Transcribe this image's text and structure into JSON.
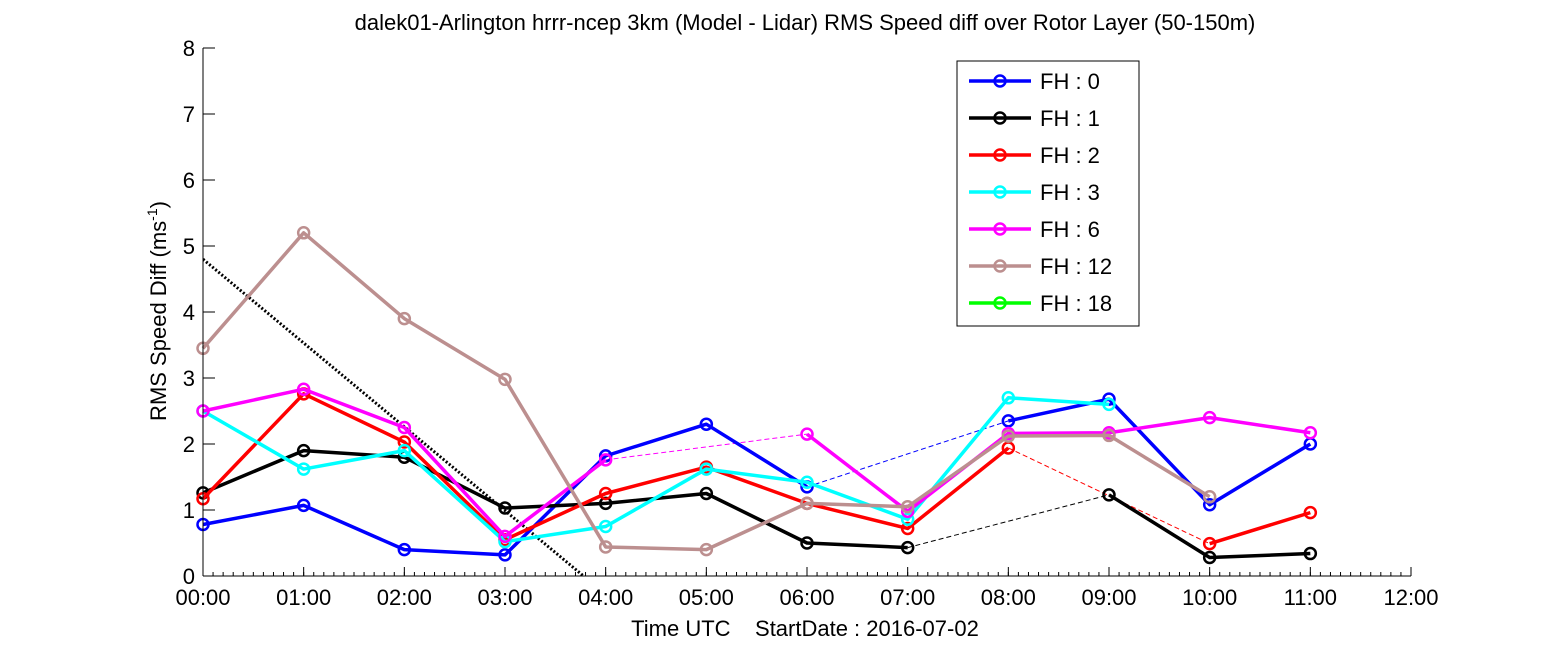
{
  "chart_data": {
    "type": "line",
    "title": "dalek01-Arlington hrrr-ncep 3km (Model - Lidar) RMS Speed diff over Rotor Layer (50-150m)",
    "xlabel": "Time UTC    StartDate : 2016-07-02",
    "ylabel_main": "RMS Speed Diff (ms",
    "ylabel_sup": "-1",
    "ylabel_close": ")",
    "xlim": [
      0,
      12
    ],
    "ylim": [
      0,
      8
    ],
    "x_ticks": [
      0,
      1,
      2,
      3,
      4,
      5,
      6,
      7,
      8,
      9,
      10,
      11,
      12
    ],
    "x_tick_labels": [
      "00:00",
      "01:00",
      "02:00",
      "03:00",
      "04:00",
      "05:00",
      "06:00",
      "07:00",
      "08:00",
      "09:00",
      "10:00",
      "11:00",
      "12:00"
    ],
    "y_ticks": [
      0,
      1,
      2,
      3,
      4,
      5,
      6,
      7,
      8
    ],
    "y_tick_labels": [
      "0",
      "1",
      "2",
      "3",
      "4",
      "5",
      "6",
      "7",
      "8"
    ],
    "grid": false,
    "legend_position": "top-right",
    "series": [
      {
        "name": "FH : 0",
        "color": "#0000ff",
        "x": [
          0,
          1,
          2,
          3,
          4,
          5,
          6,
          8,
          9,
          10,
          11
        ],
        "y": [
          0.78,
          1.07,
          0.4,
          0.32,
          1.82,
          2.3,
          1.35,
          2.35,
          2.68,
          1.08,
          2.0
        ]
      },
      {
        "name": "FH : 1",
        "color": "#000000",
        "x": [
          0,
          1,
          2,
          3,
          4,
          5,
          6,
          7,
          9,
          10,
          11
        ],
        "y": [
          1.26,
          1.9,
          1.8,
          1.03,
          1.1,
          1.25,
          0.5,
          0.43,
          1.23,
          0.28,
          0.34
        ]
      },
      {
        "name": "FH : 2",
        "color": "#ff0000",
        "x": [
          0,
          1,
          2,
          3,
          4,
          5,
          6,
          7,
          8,
          10,
          11
        ],
        "y": [
          1.17,
          2.76,
          2.03,
          0.55,
          1.25,
          1.65,
          1.1,
          0.72,
          1.94,
          0.49,
          0.96
        ]
      },
      {
        "name": "FH : 3",
        "color": "#00ffff",
        "x": [
          0,
          1,
          2,
          3,
          4,
          5,
          6,
          7,
          8,
          9
        ],
        "y": [
          2.5,
          1.62,
          1.9,
          0.52,
          0.75,
          1.62,
          1.42,
          0.86,
          2.7,
          2.6
        ]
      },
      {
        "name": "FH : 6",
        "color": "#ff00ff",
        "x": [
          0,
          1,
          2,
          3,
          4,
          6,
          7,
          8,
          9,
          10,
          11
        ],
        "y": [
          2.5,
          2.83,
          2.25,
          0.6,
          1.76,
          2.15,
          0.98,
          2.16,
          2.17,
          2.4,
          2.17
        ]
      },
      {
        "name": "FH : 12",
        "color": "#bc8f8f",
        "x": [
          0,
          1,
          2,
          3,
          4,
          5,
          6,
          7,
          8,
          9,
          10
        ],
        "y": [
          3.45,
          5.2,
          3.9,
          2.98,
          0.44,
          0.4,
          1.1,
          1.05,
          2.12,
          2.13,
          1.2
        ]
      },
      {
        "name": "FH : 18",
        "color": "#00ff00",
        "x": [],
        "y": []
      }
    ],
    "gap_connectors": [
      {
        "color": "#0000ff",
        "x": [
          6,
          8
        ],
        "y": [
          1.35,
          2.35
        ]
      },
      {
        "color": "#000000",
        "x": [
          7,
          9
        ],
        "y": [
          0.43,
          1.23
        ]
      },
      {
        "color": "#ff0000",
        "x": [
          8,
          10
        ],
        "y": [
          1.94,
          0.49
        ]
      },
      {
        "color": "#ff00ff",
        "x": [
          4,
          6
        ],
        "y": [
          1.76,
          2.15
        ]
      }
    ],
    "trend_line": {
      "color": "#000000",
      "x": [
        0,
        3.78
      ],
      "y": [
        4.8,
        0
      ]
    }
  }
}
